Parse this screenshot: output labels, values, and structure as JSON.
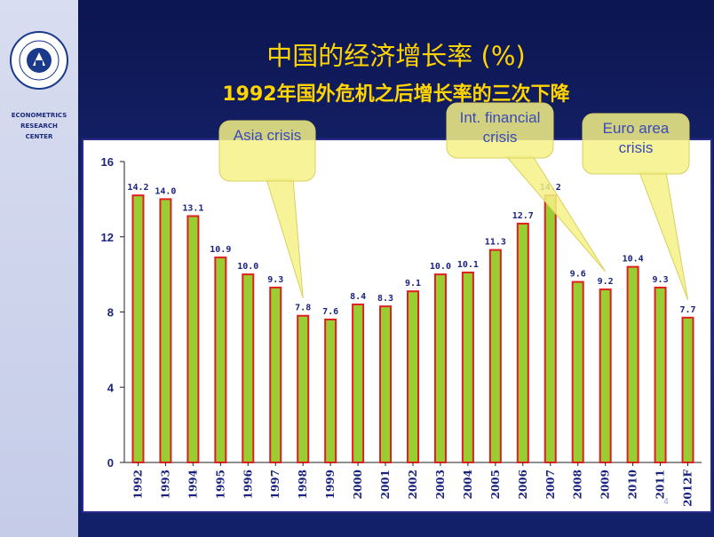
{
  "sidebar": {
    "center_name": "ECONOMETRICS\nRESEARCH\nCENTER"
  },
  "slide": {
    "title": "中国的经济增长率 (%)",
    "subtitle": "1992年国外危机之后增长率的三次下降",
    "page_number": "4"
  },
  "callouts": [
    {
      "name": "asia-crisis",
      "lines": [
        "Asia crisis"
      ],
      "target_category": "1998"
    },
    {
      "name": "intl-financial-crisis",
      "lines": [
        "Int. financial",
        "crisis"
      ],
      "target_category": "2009"
    },
    {
      "name": "euro-area-crisis",
      "lines": [
        "Euro area",
        "crisis"
      ],
      "target_category": "2012F"
    }
  ],
  "colors": {
    "bar_fill": "#9acd32",
    "bar_border": "#e02020",
    "plot_bg": "#ffffff",
    "label_color": "#1a237e",
    "callout_fill": "#f4f186"
  },
  "chart_data": {
    "type": "bar",
    "categories": [
      "1992",
      "1993",
      "1994",
      "1995",
      "1996",
      "1997",
      "1998",
      "1999",
      "2000",
      "2001",
      "2002",
      "2003",
      "2004",
      "2005",
      "2006",
      "2007",
      "2008",
      "2009",
      "2010",
      "2011",
      "2012F"
    ],
    "values": [
      14.2,
      14.0,
      13.1,
      10.9,
      10.0,
      9.3,
      7.8,
      7.6,
      8.4,
      8.3,
      9.1,
      10.0,
      10.1,
      11.3,
      12.7,
      14.2,
      9.6,
      9.2,
      10.4,
      9.3,
      7.7
    ],
    "data_labels": [
      "14.2",
      "14.0",
      "13.1",
      "10.9",
      "10.0",
      "9.3",
      "7.8",
      "7.6",
      "8.4",
      "8.3",
      "9.1",
      "10.0",
      "10.1",
      "11.3",
      "12.7",
      "14.2",
      "9.6",
      "9.2",
      "10.4",
      "9.3",
      "7.7"
    ],
    "ylim": [
      0,
      16
    ],
    "yticks": [
      "0",
      "4",
      "8",
      "12",
      "16"
    ],
    "grid": false,
    "legend": "none"
  }
}
